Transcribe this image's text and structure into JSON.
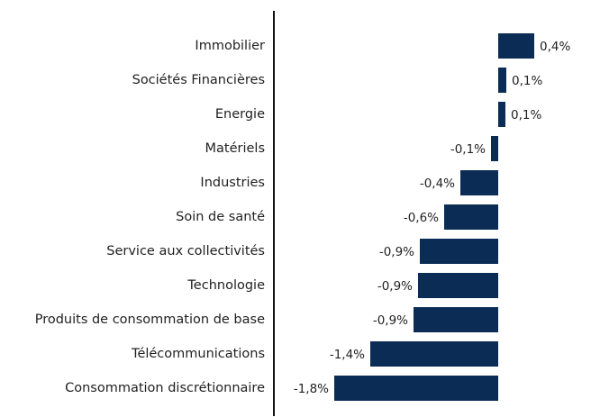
{
  "chart_data": {
    "type": "bar",
    "orientation": "horizontal",
    "color": "#0b2d55",
    "categories": [
      "Immobilier",
      "Sociétés Financières",
      "Energie",
      "Matériels",
      "Industries",
      "Soin de santé",
      "Service aux collectivités",
      "Technologie",
      "Produits de consommation de base",
      "Télécommunications",
      "Consommation discrétionnaire"
    ],
    "values": [
      0.4,
      0.09,
      0.08,
      -0.08,
      -0.42,
      -0.6,
      -0.87,
      -0.89,
      -0.94,
      -1.42,
      -1.82
    ],
    "value_labels": [
      "0,4%",
      "0,1%",
      "0,1%",
      "-0,1%",
      "-0,4%",
      "-0,6%",
      "-0,9%",
      "-0,9%",
      "-0,9%",
      "-1,4%",
      "-1,8%"
    ]
  }
}
